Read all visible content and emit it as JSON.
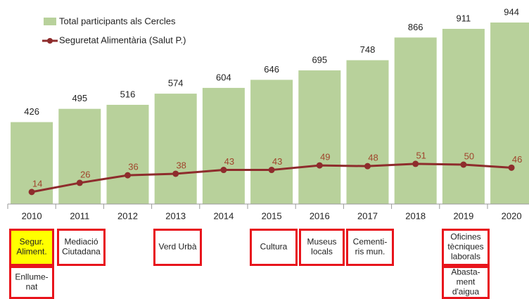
{
  "chart_data": {
    "type": "bar",
    "categories": [
      "2010",
      "2011",
      "2012",
      "2013",
      "2014",
      "2015",
      "2016",
      "2017",
      "2018",
      "2019",
      "2020"
    ],
    "series": [
      {
        "name": "Total participants als Cercles",
        "type": "bar",
        "color": "#b8d19b",
        "values": [
          426,
          495,
          516,
          574,
          604,
          646,
          695,
          748,
          866,
          911,
          944
        ]
      },
      {
        "name": "Seguretat Alimentària (Salut P.)",
        "type": "line",
        "axis": "y2",
        "color": "#8e2c2c",
        "values": [
          14,
          26,
          36,
          38,
          43,
          43,
          49,
          48,
          51,
          50,
          46
        ]
      }
    ],
    "annotations": [
      {
        "lines": [
          "Segur.",
          "Aliment."
        ],
        "color": "#ffff00"
      },
      {
        "lines": [
          "Enllume-",
          "nat"
        ]
      },
      {
        "lines": [
          "Mediació",
          "Ciutadana"
        ]
      },
      {
        "lines": [
          "Verd Urbà"
        ]
      },
      {
        "lines": [
          "Cultura"
        ]
      },
      {
        "lines": [
          "Museus",
          "locals"
        ]
      },
      {
        "lines": [
          "Cementi-",
          "ris mun."
        ]
      },
      {
        "lines": [
          "Oficines",
          "tècniques",
          "laborals"
        ]
      },
      {
        "lines": [
          "Abasta-",
          "ment",
          "d'aigua"
        ]
      }
    ]
  }
}
